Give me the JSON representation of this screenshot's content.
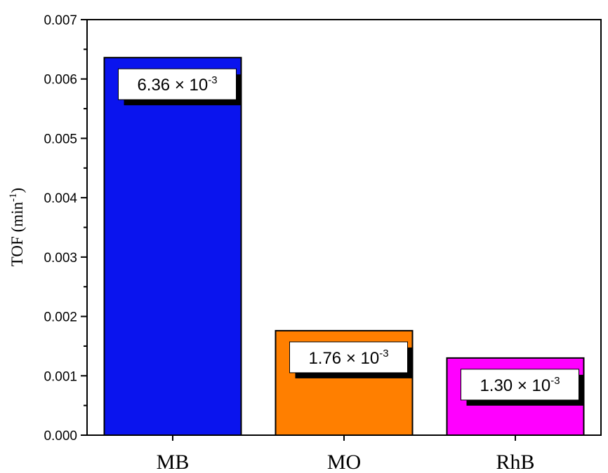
{
  "chart_data": {
    "type": "bar",
    "categories": [
      "MB",
      "MO",
      "RhB"
    ],
    "values": [
      0.00636,
      0.00176,
      0.0013
    ],
    "data_labels": [
      {
        "base": "6.36 × 10",
        "exp": "-3"
      },
      {
        "base": "1.76 × 10",
        "exp": "-3"
      },
      {
        "base": "1.30 × 10",
        "exp": "-3"
      }
    ],
    "bar_colors": [
      "#0a14ee",
      "#ff7f00",
      "#ff00ff"
    ],
    "ylabel": {
      "pre": "TOF (min",
      "sup": "-1",
      "post": ")"
    },
    "xlabel": "",
    "ylim": [
      0,
      0.007
    ],
    "yticks": [
      "0.000",
      "0.001",
      "0.002",
      "0.003",
      "0.004",
      "0.005",
      "0.006",
      "0.007"
    ],
    "ytick_values": [
      0,
      0.001,
      0.002,
      0.003,
      0.004,
      0.005,
      0.006,
      0.007
    ],
    "grid": false,
    "legend": "none"
  }
}
